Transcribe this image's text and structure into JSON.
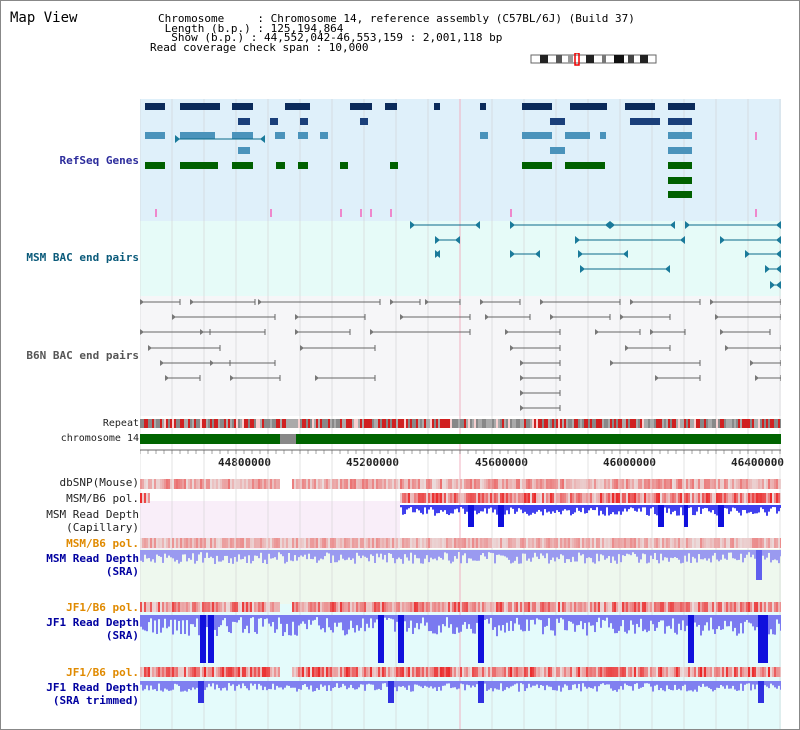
{
  "header": {
    "title": "Map View",
    "chromosome_line": "Chromosome     : Chromosome 14, reference assembly (C57BL/6J) (Build 37)",
    "length_line": " Length (b.p.) : 125,194,864",
    "show_line": "  Show (b.p.) : 44,552,042-46,553,159 : 2,001,118 bp",
    "coverage_line": "Read coverage check span : 10,000"
  },
  "tracks": {
    "refseq": "RefSeq Genes",
    "msm_bac": "MSM BAC end pairs",
    "b6n_bac": "B6N BAC end pairs",
    "repeat": "Repeat",
    "chromosome": "chromosome 14",
    "dbsnp": "dbSNP(Mouse)",
    "msm_b6_pol_1": "MSM/B6 pol.",
    "msm_cap_1": "MSM Read Depth",
    "msm_cap_2": "(Capillary)",
    "msm_b6_pol_2": "MSM/B6 pol.",
    "msm_sra_1": "MSM Read Depth",
    "msm_sra_2": "(SRA)",
    "jf1_pol_1": "JF1/B6 pol.",
    "jf1_sra_1": "JF1 Read Depth",
    "jf1_sra_2": "(SRA)",
    "jf1_pol_2": "JF1/B6 pol.",
    "jf1_trim_1": "JF1 Read Depth",
    "jf1_trim_2": "(SRA trimmed)"
  },
  "axis_ticks": [
    "44800000",
    "45200000",
    "45600000",
    "46000000",
    "46400000"
  ],
  "colors": {
    "refseq_bg": "#dff0fa",
    "msm_bac_bg": "#e6fbf8",
    "b6n_bac_bg": "#f6f6f8",
    "chrom_green": "#006400",
    "depth_blue": "#2020dd",
    "pol_red": "#dd2020",
    "label_blue": "#0000a0",
    "label_orange": "#e08a00"
  }
}
